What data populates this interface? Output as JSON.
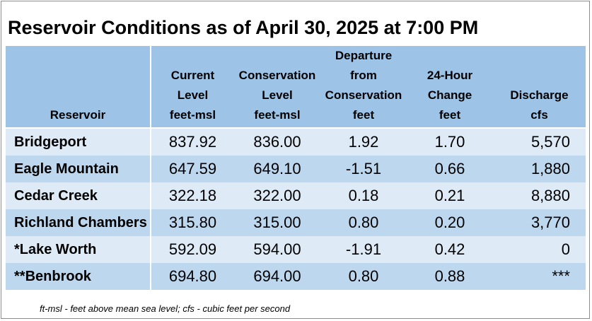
{
  "title": "Reservoir Conditions as of April 30, 2025 at 7:00 PM",
  "columns": [
    {
      "lines": [
        "",
        "",
        "",
        "Reservoir"
      ]
    },
    {
      "lines": [
        "",
        "Current",
        "Level",
        "feet-msl"
      ]
    },
    {
      "lines": [
        "",
        "Conservation",
        "Level",
        "feet-msl"
      ]
    },
    {
      "lines": [
        "Departure",
        "from",
        "Conservation",
        "feet"
      ]
    },
    {
      "lines": [
        "",
        "24-Hour",
        "Change",
        "feet"
      ]
    },
    {
      "lines": [
        "",
        "",
        "Discharge",
        "cfs"
      ]
    }
  ],
  "rows": [
    {
      "name": "Bridgeport",
      "current": "837.92",
      "conservation": "836.00",
      "departure": "1.92",
      "change": "1.70",
      "discharge": "5,570"
    },
    {
      "name": "Eagle Mountain",
      "current": "647.59",
      "conservation": "649.10",
      "departure": "-1.51",
      "change": "0.66",
      "discharge": "1,880"
    },
    {
      "name": "Cedar Creek",
      "current": "322.18",
      "conservation": "322.00",
      "departure": "0.18",
      "change": "0.21",
      "discharge": "8,880"
    },
    {
      "name": "Richland Chambers",
      "current": "315.80",
      "conservation": "315.00",
      "departure": "0.80",
      "change": "0.20",
      "discharge": "3,770"
    },
    {
      "name": "*Lake Worth",
      "current": "592.09",
      "conservation": "594.00",
      "departure": "-1.91",
      "change": "0.42",
      "discharge": "0"
    },
    {
      "name": "**Benbrook",
      "current": "694.80",
      "conservation": "694.00",
      "departure": "0.80",
      "change": "0.88",
      "discharge": "***"
    }
  ],
  "footnote": "ft-msl - feet above mean sea level; cfs - cubic feet per second",
  "colors": {
    "header": "#9dc3e6",
    "row_light": "#deebf7",
    "row_dark": "#bdd7ee"
  }
}
